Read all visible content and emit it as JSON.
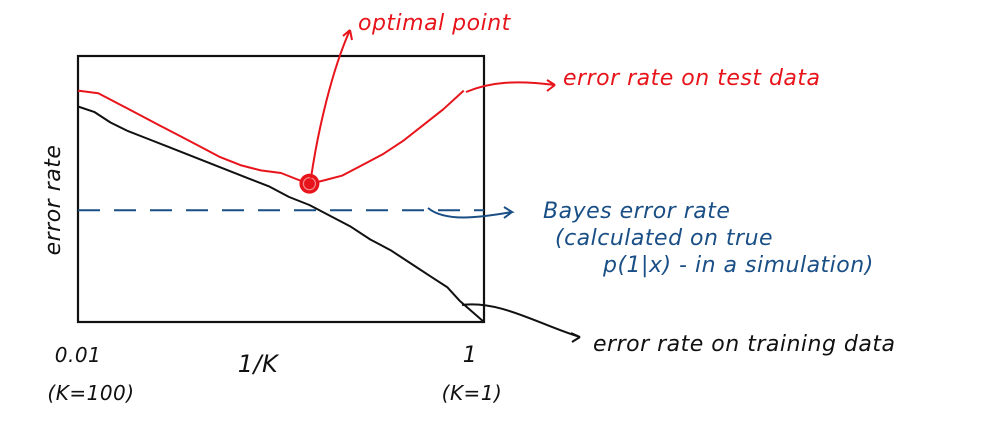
{
  "colors": {
    "test": "#e8141b",
    "train": "#111111",
    "bayes": "#1a4f86",
    "frame": "#111111",
    "ink": "#111111"
  },
  "chart_data": {
    "type": "line",
    "title": "",
    "xlabel": "1/K",
    "ylabel": "error rate",
    "x_tick_labels": {
      "left": "0.01",
      "left_sub": "(K=100)",
      "right": "1",
      "right_sub": "(K=1)"
    },
    "xlim": [
      0,
      1
    ],
    "ylim": [
      0,
      1
    ],
    "grid": false,
    "series": [
      {
        "name": "error rate on test data",
        "color": "#e8141b",
        "x": [
          0.0,
          0.05,
          0.1,
          0.15,
          0.2,
          0.25,
          0.3,
          0.35,
          0.4,
          0.45,
          0.5,
          0.55,
          0.57,
          0.6,
          0.65,
          0.7,
          0.75,
          0.8,
          0.85,
          0.9,
          0.95
        ],
        "y": [
          0.87,
          0.86,
          0.82,
          0.78,
          0.74,
          0.7,
          0.66,
          0.62,
          0.59,
          0.57,
          0.56,
          0.53,
          0.52,
          0.53,
          0.55,
          0.59,
          0.63,
          0.68,
          0.74,
          0.8,
          0.87
        ]
      },
      {
        "name": "error rate on training data",
        "color": "#111111",
        "x": [
          0.0,
          0.04,
          0.08,
          0.12,
          0.17,
          0.22,
          0.27,
          0.32,
          0.37,
          0.42,
          0.47,
          0.52,
          0.57,
          0.62,
          0.67,
          0.72,
          0.77,
          0.82,
          0.87,
          0.91,
          0.94,
          0.97,
          1.0
        ],
        "y": [
          0.81,
          0.79,
          0.75,
          0.72,
          0.69,
          0.66,
          0.63,
          0.6,
          0.57,
          0.54,
          0.51,
          0.47,
          0.44,
          0.4,
          0.36,
          0.31,
          0.27,
          0.22,
          0.17,
          0.13,
          0.08,
          0.04,
          0.0
        ]
      }
    ],
    "reference_lines": [
      {
        "name": "Bayes error rate",
        "y": 0.42,
        "style": "dashed",
        "color": "#1a4f86"
      }
    ],
    "optimal_point": {
      "x": 0.57,
      "y": 0.52,
      "color": "#e8141b"
    },
    "annotations": {
      "optimal": "optimal point",
      "test": "error rate on test data",
      "bayes_1": "Bayes error rate",
      "bayes_2": "(calculated on true",
      "bayes_3": "p(1|x) - in a simulation)",
      "train": "error rate on training data"
    }
  }
}
